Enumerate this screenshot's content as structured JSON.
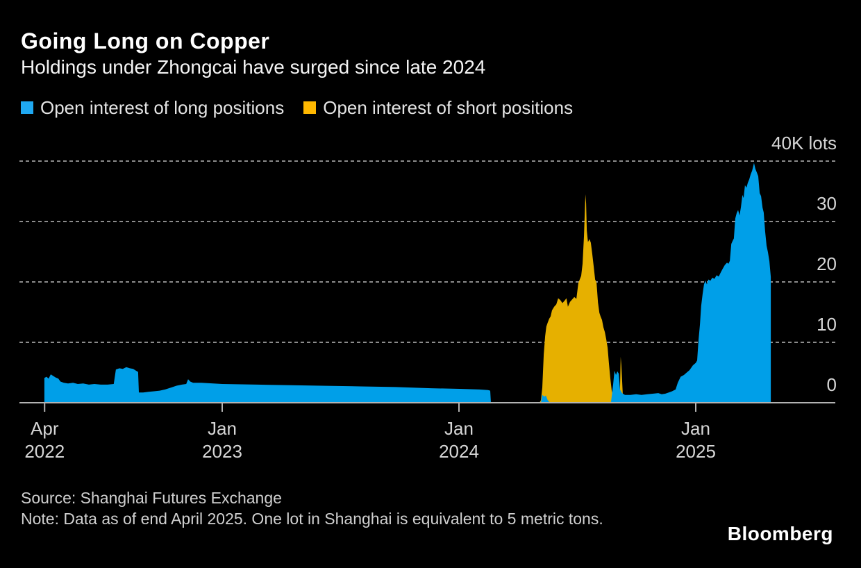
{
  "header": {
    "title": "Going Long on Copper",
    "subtitle": "Holdings under Zhongcai have surged since late 2024"
  },
  "chart_data": {
    "type": "area",
    "title": "Going Long on Copper",
    "subtitle": "Holdings under Zhongcai have surged since late 2024",
    "unit": "thousand lots",
    "ylim": [
      0,
      40
    ],
    "x_domain_years": [
      2022.145,
      2025.59
    ],
    "grid": "dashed-horizontal",
    "legend_position": "top-left",
    "colors": {
      "background": "#000000",
      "grid": "#8c8c8c",
      "axis": "#b3b3b3",
      "tick_label": "#d6d6d6"
    },
    "y_ticks": [
      {
        "value": 40,
        "label": "40K lots"
      },
      {
        "value": 30,
        "label": "30"
      },
      {
        "value": 20,
        "label": "20"
      },
      {
        "value": 10,
        "label": "10"
      },
      {
        "value": 0,
        "label": "0"
      }
    ],
    "x_ticks": [
      {
        "year": 2022.25,
        "line1": "Apr",
        "line2": "2022"
      },
      {
        "year": 2023.0,
        "line1": "Jan",
        "line2": "2023"
      },
      {
        "year": 2024.0,
        "line1": "Jan",
        "line2": "2024"
      },
      {
        "year": 2025.0,
        "line1": "Jan",
        "line2": "2025"
      }
    ],
    "draw_order": [
      1,
      0
    ],
    "series": [
      {
        "name": "Open interest of long positions",
        "color": "#009FE8",
        "swatch_color": "#1FA8F1",
        "points": [
          [
            2022.249,
            4.1
          ],
          [
            2022.258,
            4.3
          ],
          [
            2022.267,
            4.0
          ],
          [
            2022.276,
            4.7
          ],
          [
            2022.284,
            4.5
          ],
          [
            2022.296,
            4.2
          ],
          [
            2022.308,
            4.0
          ],
          [
            2022.317,
            3.5
          ],
          [
            2022.331,
            3.3
          ],
          [
            2022.349,
            3.2
          ],
          [
            2022.37,
            3.3
          ],
          [
            2022.39,
            3.1
          ],
          [
            2022.413,
            3.2
          ],
          [
            2022.437,
            3.0
          ],
          [
            2022.46,
            3.1
          ],
          [
            2022.487,
            3.0
          ],
          [
            2022.516,
            3.0
          ],
          [
            2022.542,
            3.1
          ],
          [
            2022.551,
            5.5
          ],
          [
            2022.566,
            5.7
          ],
          [
            2022.58,
            5.6
          ],
          [
            2022.595,
            5.9
          ],
          [
            2022.61,
            5.7
          ],
          [
            2022.624,
            5.6
          ],
          [
            2022.636,
            5.3
          ],
          [
            2022.645,
            5.1
          ],
          [
            2022.648,
            1.7
          ],
          [
            2022.666,
            1.7
          ],
          [
            2022.689,
            1.8
          ],
          [
            2022.712,
            1.9
          ],
          [
            2022.736,
            2.0
          ],
          [
            2022.759,
            2.2
          ],
          [
            2022.783,
            2.5
          ],
          [
            2022.806,
            2.8
          ],
          [
            2022.83,
            3.0
          ],
          [
            2022.848,
            3.1
          ],
          [
            2022.856,
            3.9
          ],
          [
            2022.865,
            3.5
          ],
          [
            2022.877,
            3.3
          ],
          [
            2022.912,
            3.3
          ],
          [
            2023.0,
            3.1
          ],
          [
            2023.147,
            3.0
          ],
          [
            2023.293,
            2.9
          ],
          [
            2023.44,
            2.8
          ],
          [
            2023.587,
            2.7
          ],
          [
            2023.733,
            2.6
          ],
          [
            2023.88,
            2.4
          ],
          [
            2024.003,
            2.3
          ],
          [
            2024.085,
            2.2
          ],
          [
            2024.123,
            2.1
          ],
          [
            2024.132,
            2.0
          ],
          [
            2024.135,
            0.0
          ],
          [
            2024.346,
            0.0
          ],
          [
            2024.352,
            1.3
          ],
          [
            2024.361,
            1.0
          ],
          [
            2024.367,
            1.2
          ],
          [
            2024.375,
            0.4
          ],
          [
            2024.384,
            0.05
          ],
          [
            2024.642,
            0.05
          ],
          [
            2024.651,
            3.0
          ],
          [
            2024.657,
            5.3
          ],
          [
            2024.663,
            4.6
          ],
          [
            2024.669,
            5.2
          ],
          [
            2024.675,
            4.8
          ],
          [
            2024.68,
            2.2
          ],
          [
            2024.689,
            1.6
          ],
          [
            2024.701,
            1.3
          ],
          [
            2024.724,
            1.3
          ],
          [
            2024.748,
            1.4
          ],
          [
            2024.771,
            1.3
          ],
          [
            2024.795,
            1.4
          ],
          [
            2024.818,
            1.5
          ],
          [
            2024.842,
            1.6
          ],
          [
            2024.856,
            1.4
          ],
          [
            2024.871,
            1.5
          ],
          [
            2024.886,
            1.7
          ],
          [
            2024.9,
            1.9
          ],
          [
            2024.915,
            2.2
          ],
          [
            2024.924,
            3.3
          ],
          [
            2024.936,
            4.3
          ],
          [
            2024.95,
            4.6
          ],
          [
            2024.962,
            5.0
          ],
          [
            2024.974,
            5.4
          ],
          [
            2024.988,
            6.2
          ],
          [
            2025.0,
            6.6
          ],
          [
            2025.006,
            7.0
          ],
          [
            2025.012,
            10.5
          ],
          [
            2025.018,
            13.0
          ],
          [
            2025.023,
            16.0
          ],
          [
            2025.029,
            18.0
          ],
          [
            2025.035,
            19.6
          ],
          [
            2025.041,
            20.2
          ],
          [
            2025.047,
            19.6
          ],
          [
            2025.053,
            20.4
          ],
          [
            2025.062,
            20.2
          ],
          [
            2025.07,
            20.7
          ],
          [
            2025.079,
            20.5
          ],
          [
            2025.088,
            21.1
          ],
          [
            2025.097,
            20.9
          ],
          [
            2025.106,
            21.6
          ],
          [
            2025.114,
            22.2
          ],
          [
            2025.123,
            22.8
          ],
          [
            2025.132,
            23.2
          ],
          [
            2025.138,
            23.0
          ],
          [
            2025.144,
            23.5
          ],
          [
            2025.15,
            26.3
          ],
          [
            2025.156,
            26.8
          ],
          [
            2025.161,
            27.2
          ],
          [
            2025.167,
            30.5
          ],
          [
            2025.173,
            31.4
          ],
          [
            2025.179,
            31.9
          ],
          [
            2025.185,
            31.0
          ],
          [
            2025.191,
            32.4
          ],
          [
            2025.197,
            34.4
          ],
          [
            2025.202,
            33.9
          ],
          [
            2025.208,
            36.0
          ],
          [
            2025.214,
            35.6
          ],
          [
            2025.22,
            36.4
          ],
          [
            2025.226,
            37.0
          ],
          [
            2025.232,
            37.8
          ],
          [
            2025.238,
            38.4
          ],
          [
            2025.246,
            39.7
          ],
          [
            2025.252,
            38.7
          ],
          [
            2025.258,
            38.1
          ],
          [
            2025.264,
            37.5
          ],
          [
            2025.27,
            34.7
          ],
          [
            2025.276,
            34.2
          ],
          [
            2025.282,
            32.3
          ],
          [
            2025.287,
            31.5
          ],
          [
            2025.293,
            28.4
          ],
          [
            2025.299,
            26.0
          ],
          [
            2025.305,
            24.9
          ],
          [
            2025.311,
            23.4
          ],
          [
            2025.317,
            20.8
          ]
        ]
      },
      {
        "name": "Open interest of short positions",
        "color": "#E6B000",
        "swatch_color": "#FFB800",
        "points": [
          [
            2024.34,
            0.0
          ],
          [
            2024.346,
            0.4
          ],
          [
            2024.352,
            2.5
          ],
          [
            2024.358,
            8.0
          ],
          [
            2024.364,
            11.0
          ],
          [
            2024.369,
            12.6
          ],
          [
            2024.375,
            13.3
          ],
          [
            2024.381,
            13.9
          ],
          [
            2024.387,
            14.3
          ],
          [
            2024.393,
            15.3
          ],
          [
            2024.402,
            15.9
          ],
          [
            2024.411,
            16.3
          ],
          [
            2024.419,
            17.3
          ],
          [
            2024.428,
            17.0
          ],
          [
            2024.437,
            16.5
          ],
          [
            2024.446,
            16.9
          ],
          [
            2024.454,
            17.3
          ],
          [
            2024.46,
            15.9
          ],
          [
            2024.469,
            16.7
          ],
          [
            2024.478,
            17.1
          ],
          [
            2024.487,
            17.5
          ],
          [
            2024.496,
            17.2
          ],
          [
            2024.504,
            19.8
          ],
          [
            2024.51,
            20.4
          ],
          [
            2024.516,
            21.0
          ],
          [
            2024.522,
            23.0
          ],
          [
            2024.528,
            27.5
          ],
          [
            2024.534,
            34.5
          ],
          [
            2024.537,
            33.0
          ],
          [
            2024.54,
            28.5
          ],
          [
            2024.545,
            26.6
          ],
          [
            2024.551,
            27.1
          ],
          [
            2024.557,
            26.5
          ],
          [
            2024.563,
            24.6
          ],
          [
            2024.569,
            22.6
          ],
          [
            2024.575,
            20.4
          ],
          [
            2024.581,
            19.9
          ],
          [
            2024.587,
            16.6
          ],
          [
            2024.593,
            14.9
          ],
          [
            2024.598,
            14.3
          ],
          [
            2024.604,
            13.7
          ],
          [
            2024.61,
            12.5
          ],
          [
            2024.616,
            11.7
          ],
          [
            2024.622,
            10.5
          ],
          [
            2024.628,
            9.1
          ],
          [
            2024.633,
            6.6
          ],
          [
            2024.639,
            4.1
          ],
          [
            2024.645,
            2.1
          ],
          [
            2024.651,
            0.9
          ],
          [
            2024.66,
            0.5
          ],
          [
            2024.672,
            0.5
          ],
          [
            2024.68,
            2.2
          ],
          [
            2024.683,
            7.6
          ],
          [
            2024.686,
            6.2
          ],
          [
            2024.692,
            1.2
          ],
          [
            2024.698,
            0.4
          ],
          [
            2024.707,
            0.0
          ]
        ]
      }
    ]
  },
  "footer": {
    "source": "Source: Shanghai Futures Exchange",
    "note": "Note: Data as of end April 2025. One lot in Shanghai is equivalent to 5 metric tons.",
    "brand": "Bloomberg"
  }
}
